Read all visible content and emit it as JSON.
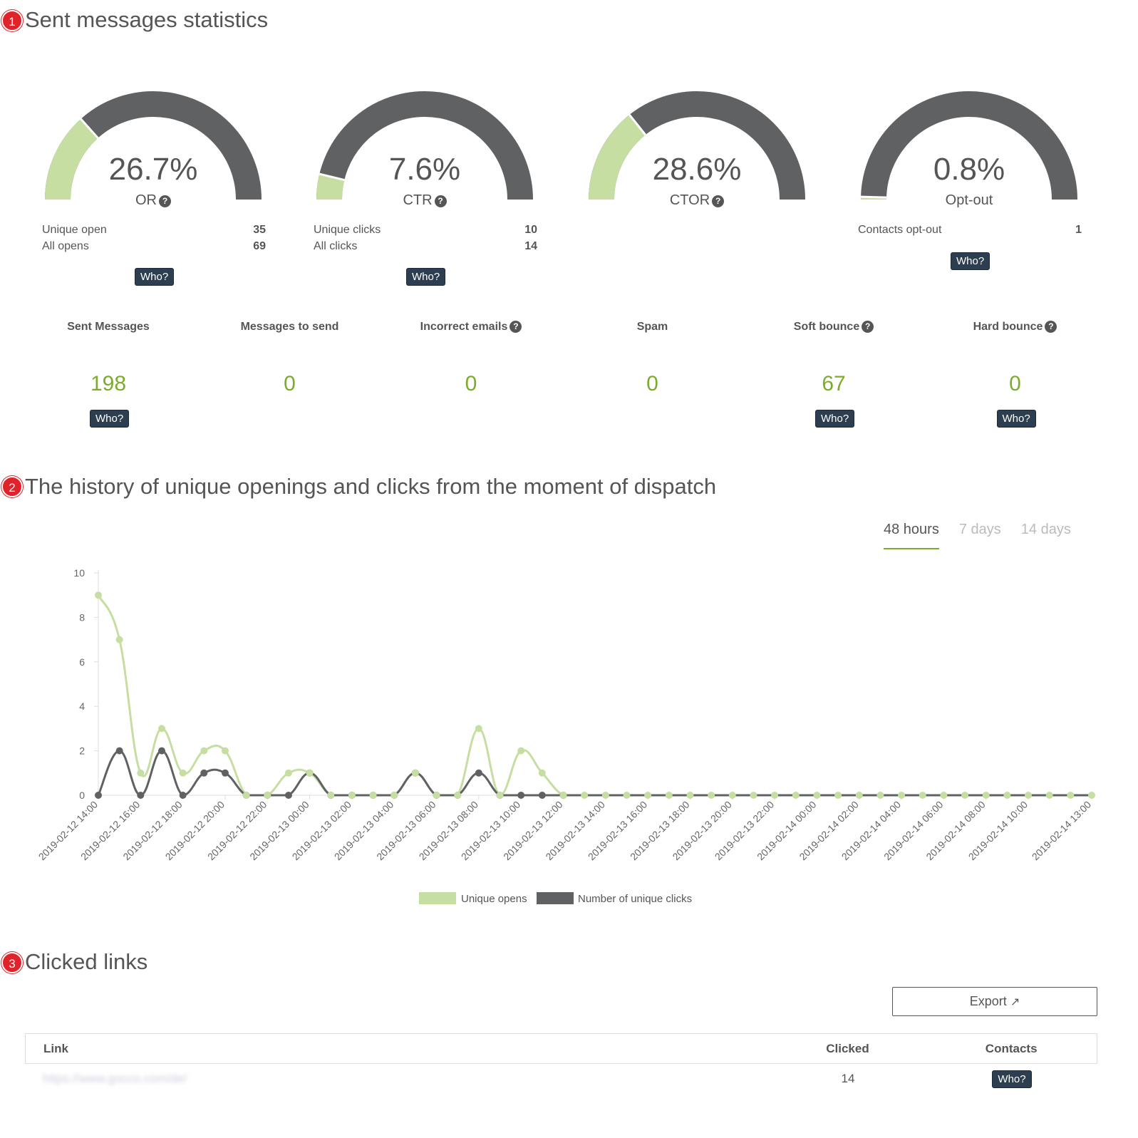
{
  "sections": {
    "s1": {
      "num": "1",
      "title": "Sent messages statistics"
    },
    "s2": {
      "num": "2",
      "title": "The history of unique openings and clicks from the moment of dispatch"
    },
    "s3": {
      "num": "3",
      "title": "Clicked links"
    }
  },
  "who_label": "Who?",
  "help_glyph": "?",
  "gauges": [
    {
      "value": "26.7%",
      "label": "OR",
      "fraction": 0.267,
      "stats": [
        {
          "label": "Unique open",
          "value": "35"
        },
        {
          "label": "All opens",
          "value": "69"
        }
      ]
    },
    {
      "value": "7.6%",
      "label": "CTR",
      "fraction": 0.076,
      "stats": [
        {
          "label": "Unique clicks",
          "value": "10"
        },
        {
          "label": "All clicks",
          "value": "14"
        }
      ]
    },
    {
      "value": "28.6%",
      "label": "CTOR",
      "fraction": 0.286,
      "stats": []
    },
    {
      "value": "0.8%",
      "label": "Opt-out",
      "fraction": 0.008,
      "stats": [
        {
          "label": "Contacts opt-out",
          "value": "1"
        }
      ]
    }
  ],
  "metrics": [
    {
      "label": "Sent Messages",
      "value": "198",
      "help": false,
      "who": true
    },
    {
      "label": "Messages to send",
      "value": "0",
      "help": false,
      "who": false
    },
    {
      "label": "Incorrect emails",
      "value": "0",
      "help": true,
      "who": false
    },
    {
      "label": "Spam",
      "value": "0",
      "help": false,
      "who": false
    },
    {
      "label": "Soft bounce",
      "value": "67",
      "help": true,
      "who": true
    },
    {
      "label": "Hard bounce",
      "value": "0",
      "help": true,
      "who": true
    }
  ],
  "tabs": [
    {
      "label": "48 hours",
      "active": true
    },
    {
      "label": "7 days",
      "active": false
    },
    {
      "label": "14 days",
      "active": false
    }
  ],
  "colors": {
    "opens": "#c6dea1",
    "clicks": "#5f6163",
    "gauge_track": "#5f6163",
    "gauge_fill": "#c6dea1",
    "accent": "#7cab2e"
  },
  "chart_data": {
    "type": "line",
    "ylim": [
      0,
      10
    ],
    "yticks": [
      0,
      2,
      4,
      6,
      8,
      10
    ],
    "x_tick_labels": [
      "2019-02-12 14:00",
      "2019-02-12 16:00",
      "2019-02-12 18:00",
      "2019-02-12 20:00",
      "2019-02-12 22:00",
      "2019-02-13 00:00",
      "2019-02-13 02:00",
      "2019-02-13 04:00",
      "2019-02-13 06:00",
      "2019-02-13 08:00",
      "2019-02-13 10:00",
      "2019-02-13 12:00",
      "2019-02-13 14:00",
      "2019-02-13 16:00",
      "2019-02-13 18:00",
      "2019-02-13 20:00",
      "2019-02-13 22:00",
      "2019-02-14 00:00",
      "2019-02-14 02:00",
      "2019-02-14 04:00",
      "2019-02-14 06:00",
      "2019-02-14 08:00",
      "2019-02-14 10:00",
      "2019-02-14 13:00"
    ],
    "legend": "bottom",
    "series": [
      {
        "name": "Unique opens",
        "values": [
          9,
          7,
          1,
          3,
          1,
          2,
          2,
          0,
          0,
          1,
          1,
          0,
          0,
          0,
          0,
          1,
          0,
          0,
          3,
          0,
          2,
          1,
          0,
          0,
          0,
          0,
          0,
          0,
          0,
          0,
          0,
          0,
          0,
          0,
          0,
          0,
          0,
          0,
          0,
          0,
          0,
          0,
          0,
          0,
          0,
          0,
          0,
          0
        ]
      },
      {
        "name": "Number of unique clicks",
        "values": [
          0,
          2,
          0,
          2,
          0,
          1,
          1,
          0,
          0,
          0,
          1,
          0,
          0,
          0,
          0,
          1,
          0,
          0,
          1,
          0,
          0,
          0,
          0,
          0,
          0,
          0,
          0,
          0,
          0,
          0,
          0,
          0,
          0,
          0,
          0,
          0,
          0,
          0,
          0,
          0,
          0,
          0,
          0,
          0,
          0,
          0,
          0,
          0
        ]
      }
    ]
  },
  "links_table": {
    "export_label": "Export",
    "headers": {
      "link": "Link",
      "clicked": "Clicked",
      "contacts": "Contacts"
    },
    "rows": [
      {
        "link": "https://www.gocco.com/de/",
        "clicked": "14"
      }
    ]
  }
}
